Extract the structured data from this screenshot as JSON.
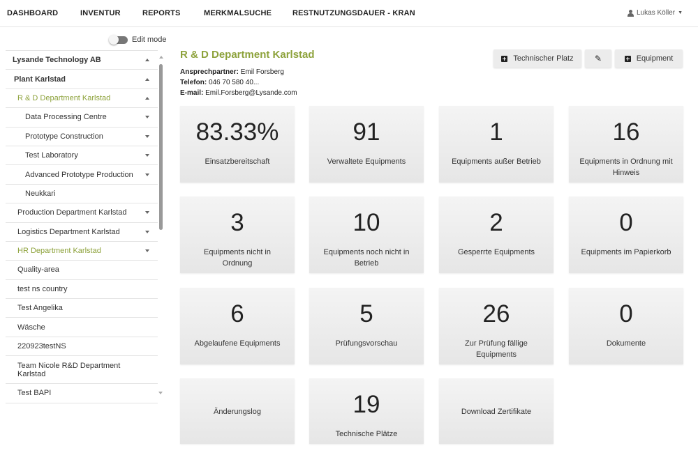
{
  "nav": {
    "items": [
      "DASHBOARD",
      "INVENTUR",
      "REPORTS",
      "MERKMALSUCHE",
      "RESTNUTZUNGSDAUER - KRAN"
    ],
    "user": "Lukas Köller"
  },
  "sidebar": {
    "edit_mode": "Edit mode",
    "items": [
      {
        "label": "Lysande Technology AB",
        "caret": "up"
      },
      {
        "label": "Plant Karlstad",
        "caret": "up"
      },
      {
        "label": "R & D Department Karlstad",
        "caret": "up"
      },
      {
        "label": "Data Processing Centre",
        "caret": "down"
      },
      {
        "label": "Prototype Construction",
        "caret": "down"
      },
      {
        "label": "Test Laboratory",
        "caret": "down"
      },
      {
        "label": "Advanced Prototype Production",
        "caret": "down"
      },
      {
        "label": "Neukkari",
        "caret": ""
      },
      {
        "label": "Production Department Karlstad",
        "caret": "down"
      },
      {
        "label": "Logistics Department Karlstad",
        "caret": "down"
      },
      {
        "label": "HR Department Karlstad",
        "caret": "down"
      },
      {
        "label": "Quality-area",
        "caret": ""
      },
      {
        "label": "test ns country",
        "caret": ""
      },
      {
        "label": "Test Angelika",
        "caret": ""
      },
      {
        "label": "Wäsche",
        "caret": ""
      },
      {
        "label": "220923testNS",
        "caret": ""
      },
      {
        "label": "Team Nicole R&D Department Karlstad",
        "caret": ""
      },
      {
        "label": "Test BAPI",
        "caret": ""
      }
    ]
  },
  "main": {
    "title": "R & D Department Karlstad",
    "contact": {
      "person_label": "Ansprechpartner:",
      "person": "Emil Forsberg",
      "phone_label": "Telefon:",
      "phone": "046 70 580 40...",
      "email_label": "E-mail:",
      "email": "Emil.Forsberg@Lysande.com"
    },
    "buttons": {
      "technischer_platz": "Technischer Platz",
      "equipment": "Equipment"
    },
    "cards": [
      {
        "value": "83.33%",
        "label": "Einsatzbereitschaft"
      },
      {
        "value": "91",
        "label": "Verwaltete Equipments"
      },
      {
        "value": "1",
        "label": "Equipments außer Betrieb"
      },
      {
        "value": "16",
        "label": "Equipments in Ordnung mit Hinweis"
      },
      {
        "value": "3",
        "label": "Equipments nicht in Ordnung"
      },
      {
        "value": "10",
        "label": "Equipments noch nicht in Betrieb"
      },
      {
        "value": "2",
        "label": "Gesperrte Equipments"
      },
      {
        "value": "0",
        "label": "Equipments im Papierkorb"
      },
      {
        "value": "6",
        "label": "Abgelaufene Equipments"
      },
      {
        "value": "5",
        "label": "Prüfungsvorschau"
      },
      {
        "value": "26",
        "label": "Zur Prüfung fällige Equipments"
      },
      {
        "value": "0",
        "label": "Dokumente"
      },
      {
        "value": "",
        "label": "Änderungslog"
      },
      {
        "value": "19",
        "label": "Technische Plätze"
      },
      {
        "value": "",
        "label": "Download Zertifikate"
      }
    ]
  },
  "colors": {
    "accent": "#8da23b"
  }
}
